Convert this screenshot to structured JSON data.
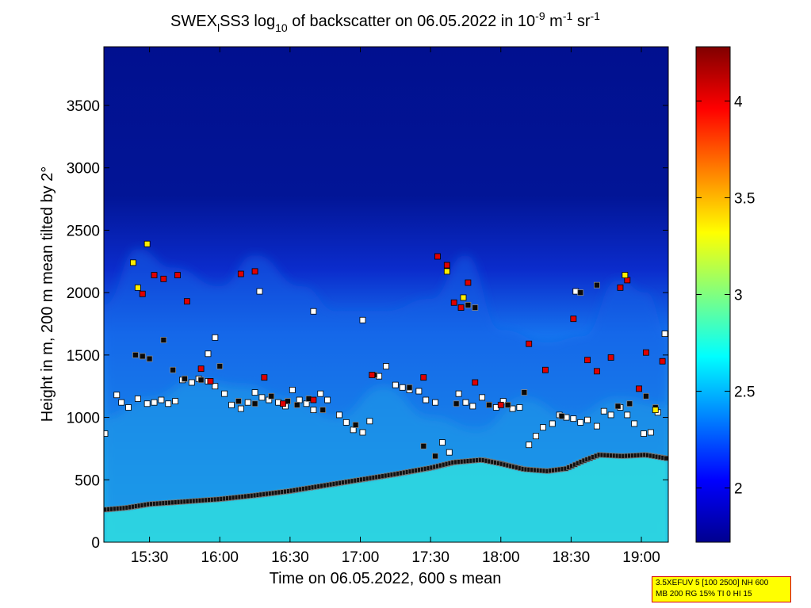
{
  "chart_data": {
    "type": "heatmap",
    "title": {
      "part1": "SWEX",
      "sub1": "l",
      "part2": "SS3 log",
      "sub2": "10",
      "part3": " of backscatter on 06.05.2022 in 10",
      "sup1": "-9",
      "part4": " m",
      "sup2": "-1",
      "part5": " sr",
      "sup3": "-1"
    },
    "xlabel": "Time on 06.05.2022, 600 s mean",
    "ylabel": "Height in m, 200 m mean tilted by 2°",
    "x_ticks": [
      "15:30",
      "16:00",
      "16:30",
      "17:00",
      "17:30",
      "18:00",
      "18:30",
      "19:00"
    ],
    "x_tick_minutes": [
      930,
      960,
      990,
      1020,
      1050,
      1080,
      1110,
      1140
    ],
    "xlim_minutes": [
      910.5,
      1151.5
    ],
    "y_ticks": [
      "0",
      "500",
      "1000",
      "1500",
      "2000",
      "2500",
      "3000",
      "3500"
    ],
    "ylim": [
      0,
      3970
    ],
    "colorbar": {
      "ticks": [
        "2",
        "2.5",
        "3",
        "3.5",
        "4"
      ],
      "range": [
        1.72,
        4.28
      ]
    },
    "colormap": [
      "#00008f",
      "#0000ff",
      "#0080ff",
      "#00ffff",
      "#80ff80",
      "#ffff00",
      "#ff8000",
      "#ff0000",
      "#800000"
    ],
    "boundary_layer_top": [
      [
        910.5,
        260
      ],
      [
        920,
        275
      ],
      [
        930,
        305
      ],
      [
        945,
        325
      ],
      [
        960,
        345
      ],
      [
        975,
        375
      ],
      [
        990,
        410
      ],
      [
        1005,
        455
      ],
      [
        1020,
        500
      ],
      [
        1035,
        545
      ],
      [
        1050,
        595
      ],
      [
        1060,
        640
      ],
      [
        1072,
        660
      ],
      [
        1080,
        630
      ],
      [
        1090,
        585
      ],
      [
        1100,
        570
      ],
      [
        1108,
        590
      ],
      [
        1115,
        650
      ],
      [
        1122,
        700
      ],
      [
        1132,
        690
      ],
      [
        1142,
        700
      ],
      [
        1151.5,
        670
      ]
    ],
    "cloud_layer_top": [
      [
        910.5,
        1000
      ],
      [
        930,
        1150
      ],
      [
        950,
        1300
      ],
      [
        970,
        1250
      ],
      [
        990,
        1150
      ],
      [
        1010,
        1000
      ],
      [
        1030,
        1250
      ],
      [
        1050,
        1000
      ],
      [
        1070,
        900
      ],
      [
        1090,
        1150
      ],
      [
        1110,
        1000
      ],
      [
        1130,
        1150
      ],
      [
        1151.5,
        1100
      ]
    ],
    "aerosol_layer_top": [
      [
        910.5,
        1900
      ],
      [
        925,
        2350
      ],
      [
        940,
        2200
      ],
      [
        960,
        2050
      ],
      [
        975,
        2300
      ],
      [
        995,
        2050
      ],
      [
        1010,
        1850
      ],
      [
        1030,
        1850
      ],
      [
        1050,
        1950
      ],
      [
        1065,
        2300
      ],
      [
        1080,
        1700
      ],
      [
        1100,
        1600
      ],
      [
        1115,
        1650
      ],
      [
        1130,
        2100
      ],
      [
        1142,
        2000
      ],
      [
        1151.5,
        1650
      ]
    ],
    "markers": {
      "white": [
        [
          911,
          870
        ],
        [
          916,
          1180
        ],
        [
          918,
          1120
        ],
        [
          921,
          1080
        ],
        [
          925,
          1150
        ],
        [
          929,
          1110
        ],
        [
          932,
          1120
        ],
        [
          935,
          1140
        ],
        [
          938,
          1110
        ],
        [
          941,
          1130
        ],
        [
          944,
          1300
        ],
        [
          948,
          1280
        ],
        [
          951,
          1310
        ],
        [
          955,
          1290
        ],
        [
          958,
          1250
        ],
        [
          962,
          1190
        ],
        [
          965,
          1100
        ],
        [
          969,
          1070
        ],
        [
          972,
          1120
        ],
        [
          975,
          1200
        ],
        [
          978,
          1160
        ],
        [
          981,
          1140
        ],
        [
          985,
          1120
        ],
        [
          988,
          1090
        ],
        [
          991,
          1220
        ],
        [
          994,
          1140
        ],
        [
          997,
          1110
        ],
        [
          1000,
          1060
        ],
        [
          1003,
          1190
        ],
        [
          1006,
          1140
        ],
        [
          1011,
          1020
        ],
        [
          1014,
          960
        ],
        [
          1017,
          900
        ],
        [
          1021,
          880
        ],
        [
          1024,
          970
        ],
        [
          1028,
          1330
        ],
        [
          1031,
          1410
        ],
        [
          1035,
          1260
        ],
        [
          1038,
          1240
        ],
        [
          1041,
          1220
        ],
        [
          1045,
          1210
        ],
        [
          1048,
          1140
        ],
        [
          1052,
          1120
        ],
        [
          1055,
          800
        ],
        [
          1058,
          720
        ],
        [
          1062,
          1190
        ],
        [
          1065,
          1120
        ],
        [
          1068,
          1090
        ],
        [
          1072,
          1160
        ],
        [
          1075,
          1100
        ],
        [
          1078,
          1080
        ],
        [
          1081,
          1130
        ],
        [
          1085,
          1070
        ],
        [
          1088,
          1080
        ],
        [
          1092,
          780
        ],
        [
          1095,
          850
        ],
        [
          1098,
          920
        ],
        [
          1102,
          950
        ],
        [
          1105,
          1020
        ],
        [
          1108,
          1000
        ],
        [
          1111,
          990
        ],
        [
          1114,
          960
        ],
        [
          1117,
          980
        ],
        [
          1121,
          930
        ],
        [
          1124,
          1050
        ],
        [
          1127,
          1020
        ],
        [
          1131,
          1080
        ],
        [
          1134,
          1020
        ],
        [
          1137,
          950
        ],
        [
          1141,
          870
        ],
        [
          1144,
          880
        ],
        [
          1147,
          1040
        ],
        [
          1150,
          1670
        ],
        [
          1112,
          2010
        ],
        [
          1000,
          1850
        ],
        [
          1021,
          1780
        ],
        [
          977,
          2010
        ],
        [
          958,
          1640
        ],
        [
          955,
          1510
        ]
      ],
      "black": [
        [
          924,
          1500
        ],
        [
          927,
          1490
        ],
        [
          930,
          1470
        ],
        [
          936,
          1620
        ],
        [
          940,
          1380
        ],
        [
          945,
          1310
        ],
        [
          952,
          1300
        ],
        [
          960,
          1410
        ],
        [
          968,
          1130
        ],
        [
          975,
          1110
        ],
        [
          982,
          1170
        ],
        [
          989,
          1130
        ],
        [
          993,
          1100
        ],
        [
          998,
          1150
        ],
        [
          1004,
          1060
        ],
        [
          1018,
          940
        ],
        [
          1026,
          1340
        ],
        [
          1041,
          1240
        ],
        [
          1047,
          770
        ],
        [
          1052,
          690
        ],
        [
          1061,
          1110
        ],
        [
          1066,
          1900
        ],
        [
          1069,
          1880
        ],
        [
          1075,
          1100
        ],
        [
          1083,
          1100
        ],
        [
          1090,
          1200
        ],
        [
          1106,
          1010
        ],
        [
          1114,
          2000
        ],
        [
          1121,
          2060
        ],
        [
          1130,
          1090
        ],
        [
          1135,
          1110
        ],
        [
          1142,
          1170
        ],
        [
          1146,
          1080
        ]
      ],
      "red": [
        [
          927,
          1990
        ],
        [
          932,
          2140
        ],
        [
          936,
          2110
        ],
        [
          942,
          2140
        ],
        [
          946,
          1930
        ],
        [
          952,
          1390
        ],
        [
          956,
          1290
        ],
        [
          969,
          2150
        ],
        [
          975,
          2170
        ],
        [
          979,
          1320
        ],
        [
          987,
          1110
        ],
        [
          1000,
          1140
        ],
        [
          1025,
          1340
        ],
        [
          1047,
          1320
        ],
        [
          1053,
          2290
        ],
        [
          1057,
          2220
        ],
        [
          1060,
          1920
        ],
        [
          1063,
          1880
        ],
        [
          1066,
          2080
        ],
        [
          1069,
          1280
        ],
        [
          1080,
          1100
        ],
        [
          1092,
          1590
        ],
        [
          1099,
          1380
        ],
        [
          1111,
          1790
        ],
        [
          1117,
          1460
        ],
        [
          1121,
          1370
        ],
        [
          1127,
          1480
        ],
        [
          1131,
          2040
        ],
        [
          1134,
          2100
        ],
        [
          1139,
          1230
        ],
        [
          1142,
          1520
        ],
        [
          1149,
          1450
        ]
      ],
      "yellow": [
        [
          923,
          2240
        ],
        [
          925,
          2040
        ],
        [
          929,
          2390
        ],
        [
          1057,
          2170
        ],
        [
          1064,
          1960
        ],
        [
          1133,
          2140
        ],
        [
          1146,
          1060
        ]
      ]
    },
    "info_box": [
      "3.5XEFUV 5 [100 2500] NH 600",
      "MB 200 RG 15% TI 0 HI 15"
    ]
  }
}
